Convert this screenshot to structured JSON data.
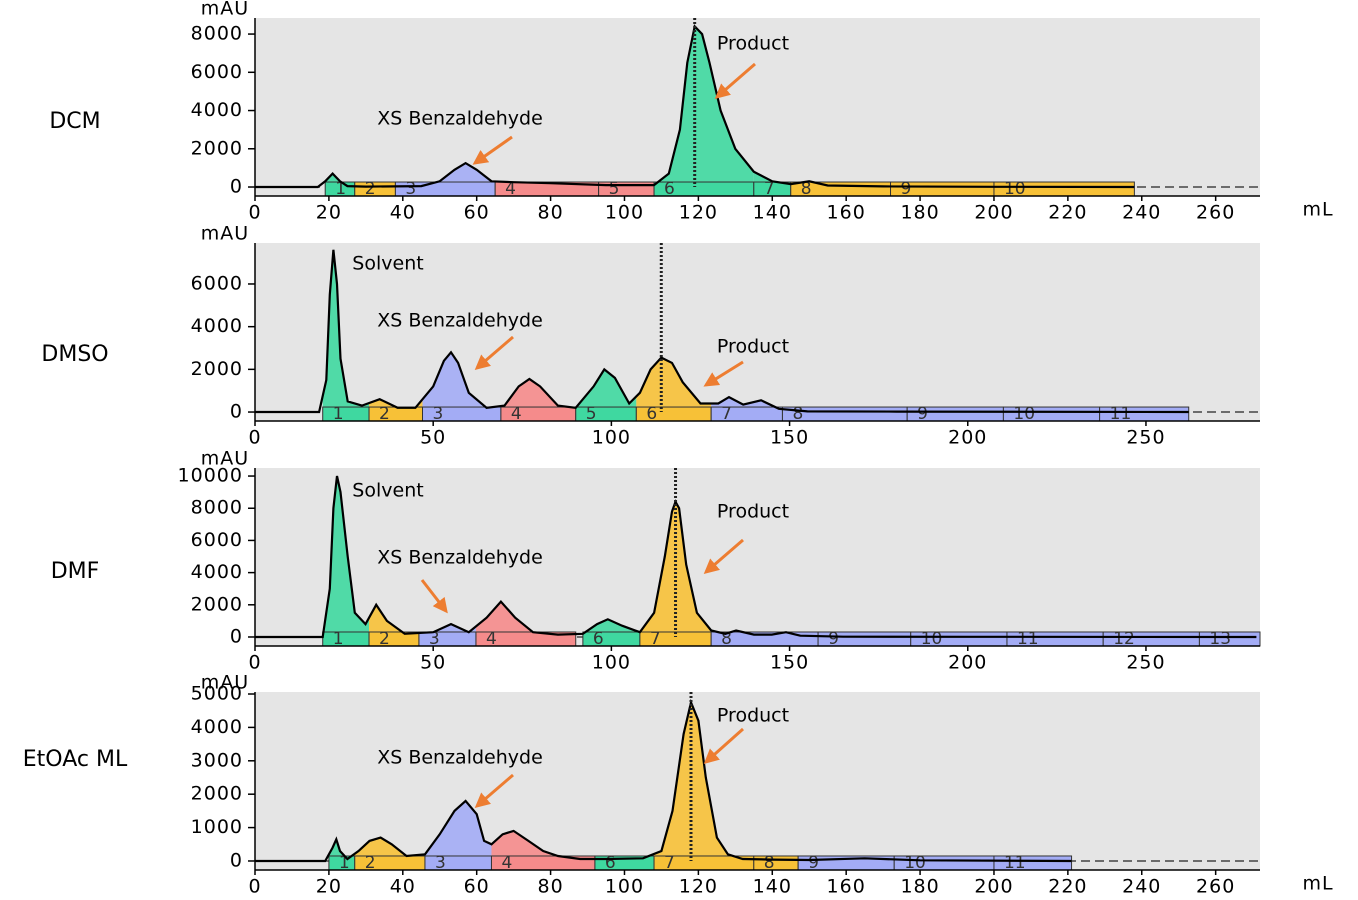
{
  "chart_data": [
    {
      "type": "area",
      "title": "DCM",
      "y_label": "mAU",
      "x_label": "mL",
      "xlim": [
        0,
        272
      ],
      "ylim": [
        -470,
        8840
      ],
      "xticks": [
        0,
        20,
        40,
        60,
        80,
        100,
        120,
        140,
        160,
        180,
        200,
        220,
        240,
        260
      ],
      "yticks": [
        0,
        2000,
        4000,
        6000,
        8000
      ],
      "x": [
        0,
        17,
        19,
        21,
        23,
        25,
        30,
        45,
        50,
        54,
        57,
        60,
        64,
        70,
        80,
        95,
        108,
        112,
        115,
        117,
        119,
        121,
        123,
        126,
        130,
        135,
        140,
        145,
        150,
        155,
        170,
        200,
        238
      ],
      "values": [
        0,
        0,
        300,
        700,
        300,
        50,
        20,
        50,
        300,
        900,
        1250,
        900,
        300,
        250,
        200,
        100,
        100,
        700,
        3000,
        6500,
        8400,
        8000,
        6500,
        4000,
        2000,
        800,
        300,
        150,
        300,
        80,
        30,
        10,
        0
      ],
      "color": "#000000",
      "marker_x": 119,
      "fractions": {
        "labels": [
          "1",
          "2",
          "3",
          "4",
          "5",
          "6",
          "7",
          "8",
          "9",
          "10"
        ],
        "starts": [
          19,
          27,
          38,
          65,
          93,
          108,
          135,
          145,
          172,
          200
        ],
        "ends": [
          27,
          38,
          65,
          93,
          108,
          135,
          145,
          172,
          200,
          238
        ],
        "colors": [
          "#3fd8a0",
          "#f7c137",
          "#a3acf5",
          "#f58b8b",
          "#f58b8b",
          "#3fd8a0",
          "#3fd8a0",
          "#f7c137",
          "#f7c137",
          "#f7c137"
        ]
      },
      "annotations": [
        {
          "text": "Product"
        },
        {
          "text": "XS Benzaldehyde"
        }
      ]
    },
    {
      "type": "area",
      "title": "DMSO",
      "y_label": "mAU",
      "xlim": [
        0,
        282
      ],
      "ylim": [
        -420,
        7920
      ],
      "xticks": [
        0,
        50,
        100,
        150,
        200,
        250
      ],
      "yticks": [
        0,
        2000,
        4000,
        6000
      ],
      "x": [
        0,
        18,
        20,
        21,
        22,
        23,
        24,
        26,
        30,
        35,
        40,
        45,
        50,
        53,
        55,
        57,
        60,
        65,
        70,
        74,
        77,
        80,
        85,
        90,
        95,
        98,
        101,
        105,
        108,
        111,
        114,
        117,
        120,
        125,
        130,
        133,
        137,
        142,
        147,
        155,
        180,
        262
      ],
      "values": [
        0,
        0,
        1500,
        5500,
        7600,
        6000,
        2500,
        500,
        300,
        600,
        200,
        200,
        1200,
        2400,
        2800,
        2300,
        900,
        200,
        300,
        1200,
        1550,
        1200,
        300,
        200,
        1200,
        2000,
        1600,
        400,
        900,
        2000,
        2550,
        2300,
        1400,
        400,
        400,
        700,
        350,
        550,
        150,
        30,
        20,
        0
      ],
      "color": "#000000",
      "marker_x": 114,
      "fractions": {
        "labels": [
          "1",
          "2",
          "3",
          "4",
          "5",
          "6",
          "7",
          "8",
          "9",
          "10",
          "11"
        ],
        "starts": [
          19,
          32,
          47,
          69,
          90,
          107,
          128,
          148,
          183,
          210,
          237
        ],
        "ends": [
          32,
          47,
          69,
          90,
          107,
          128,
          148,
          183,
          210,
          237,
          262
        ],
        "colors": [
          "#3fd8a0",
          "#f7c137",
          "#a3acf5",
          "#f58b8b",
          "#3fd8a0",
          "#f7c137",
          "#a3acf5",
          "#a3acf5",
          "#a3acf5",
          "#a3acf5",
          "#a3acf5"
        ]
      },
      "annotations": [
        {
          "text": "Solvent"
        },
        {
          "text": "XS Benzaldehyde"
        },
        {
          "text": "Product"
        }
      ]
    },
    {
      "type": "area",
      "title": "DMF",
      "y_label": "mAU",
      "xlim": [
        0,
        282
      ],
      "ylim": [
        -560,
        10500
      ],
      "xticks": [
        0,
        50,
        100,
        150,
        200,
        250
      ],
      "yticks": [
        0,
        2000,
        4000,
        6000,
        8000,
        10000
      ],
      "x": [
        0,
        19,
        21,
        22,
        23,
        24,
        26,
        28,
        31,
        34,
        37,
        42,
        50,
        55,
        60,
        65,
        69,
        73,
        78,
        85,
        92,
        96,
        99,
        103,
        108,
        112,
        115,
        117,
        118,
        119,
        121,
        124,
        128,
        132,
        135,
        140,
        145,
        149,
        153,
        165,
        200,
        281
      ],
      "values": [
        0,
        0,
        3000,
        8000,
        10000,
        9000,
        5000,
        1500,
        800,
        2000,
        1000,
        200,
        300,
        800,
        300,
        1200,
        2200,
        1200,
        300,
        150,
        200,
        800,
        1100,
        700,
        300,
        1500,
        5000,
        7800,
        8400,
        8000,
        4500,
        1500,
        400,
        200,
        400,
        150,
        150,
        300,
        80,
        20,
        10,
        0
      ],
      "color": "#000000",
      "marker_x": 118,
      "fractions": {
        "labels": [
          "1",
          "2",
          "3",
          "4",
          "6",
          "7",
          "8",
          "9",
          "10",
          "11",
          "12",
          "13"
        ],
        "starts": [
          19,
          32,
          46,
          62,
          92,
          108,
          128,
          158,
          184,
          211,
          238,
          265
        ],
        "ends": [
          32,
          46,
          62,
          90,
          108,
          128,
          158,
          184,
          211,
          238,
          265,
          282
        ],
        "colors": [
          "#3fd8a0",
          "#f7c137",
          "#a3acf5",
          "#f58b8b",
          "#3fd8a0",
          "#f7c137",
          "#a3acf5",
          "#a3acf5",
          "#a3acf5",
          "#a3acf5",
          "#a3acf5",
          "#a3acf5"
        ]
      },
      "annotations": [
        {
          "text": "Solvent"
        },
        {
          "text": "XS Benzaldehyde"
        },
        {
          "text": "Product"
        }
      ]
    },
    {
      "type": "area",
      "title": "EtOAc ML",
      "y_label": "mAU",
      "x_label": "mL",
      "xlim": [
        0,
        272
      ],
      "ylim": [
        -270,
        5060
      ],
      "xticks": [
        0,
        20,
        40,
        60,
        80,
        100,
        120,
        140,
        160,
        180,
        200,
        220,
        240,
        260
      ],
      "yticks": [
        0,
        1000,
        2000,
        3000,
        4000,
        5000
      ],
      "x": [
        0,
        19,
        21,
        22,
        23,
        25,
        28,
        31,
        34,
        37,
        41,
        46,
        50,
        54,
        57,
        60,
        62,
        64,
        67,
        70,
        74,
        78,
        82,
        88,
        95,
        105,
        110,
        113,
        116,
        118,
        120,
        122,
        125,
        128,
        132,
        140,
        150,
        165,
        180,
        221
      ],
      "values": [
        0,
        0,
        400,
        650,
        300,
        60,
        300,
        600,
        700,
        500,
        150,
        200,
        800,
        1500,
        1800,
        1400,
        600,
        500,
        800,
        900,
        600,
        300,
        150,
        60,
        60,
        80,
        300,
        1500,
        3800,
        4750,
        4200,
        2500,
        700,
        200,
        60,
        40,
        30,
        80,
        20,
        0
      ],
      "color": "#000000",
      "marker_x": 118,
      "fractions": {
        "labels": [
          "1",
          "2",
          "3",
          "4",
          "6",
          "7",
          "8",
          "9",
          "10",
          "11"
        ],
        "starts": [
          20,
          27,
          46,
          64,
          92,
          108,
          135,
          147,
          173,
          200
        ],
        "ends": [
          27,
          46,
          64,
          92,
          108,
          135,
          147,
          173,
          200,
          221
        ],
        "colors": [
          "#3fd8a0",
          "#f7c137",
          "#a3acf5",
          "#f58b8b",
          "#3fd8a0",
          "#f7c137",
          "#f7c137",
          "#a3acf5",
          "#a3acf5",
          "#a3acf5"
        ]
      },
      "annotations": [
        {
          "text": "Product"
        },
        {
          "text": "XS Benzaldehyde"
        }
      ]
    }
  ]
}
